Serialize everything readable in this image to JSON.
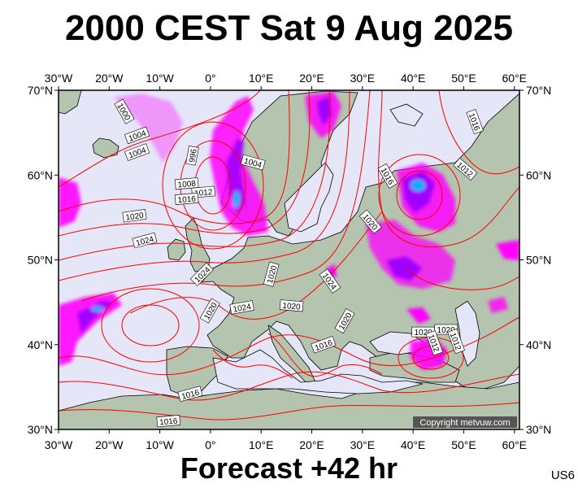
{
  "title": "2000 CEST Sat 9 Aug 2025",
  "footer": "Forecast +42 hr",
  "code": "US6",
  "copyright": "Copyright metvuw.com",
  "axes": {
    "top_lon": [
      "30°W",
      "20°W",
      "10°W",
      "0°",
      "10°E",
      "20°E",
      "30°E",
      "40°E",
      "50°E",
      "60°E"
    ],
    "bottom_lon": [
      "30°W",
      "20°W",
      "10°W",
      "0°",
      "10°E",
      "20°E",
      "30°E",
      "40°E",
      "50°E",
      "60°E"
    ],
    "left_lat": [
      "70°N",
      "60°N",
      "50°N",
      "40°N",
      "30°N"
    ],
    "right_lat": [
      "70°N",
      "60°N",
      "50°N",
      "40°N",
      "30°N"
    ]
  },
  "isobar_labels": [
    {
      "text": "1000",
      "lon": -17.0,
      "lat": 67.5,
      "rot": 60
    },
    {
      "text": "1004",
      "lon": -14.5,
      "lat": 64.7,
      "rot": -20
    },
    {
      "text": "1004",
      "lon": -14.5,
      "lat": 62.7,
      "rot": -20
    },
    {
      "text": "996",
      "lon": -3.6,
      "lat": 62.3,
      "rot": -80
    },
    {
      "text": "1004",
      "lon": 8.4,
      "lat": 61.5,
      "rot": 15
    },
    {
      "text": "1008",
      "lon": -4.7,
      "lat": 59.0,
      "rot": -5
    },
    {
      "text": "1012",
      "lon": -1.4,
      "lat": 58.0,
      "rot": -5
    },
    {
      "text": "1016",
      "lon": -4.7,
      "lat": 57.2,
      "rot": -5
    },
    {
      "text": "1020",
      "lon": -15.0,
      "lat": 55.2,
      "rot": -8
    },
    {
      "text": "1024",
      "lon": -13.0,
      "lat": 52.3,
      "rot": -15
    },
    {
      "text": "1024",
      "lon": -1.7,
      "lat": 48.3,
      "rot": -45
    },
    {
      "text": "1020",
      "lon": -0.1,
      "lat": 44.0,
      "rot": -60
    },
    {
      "text": "1024",
      "lon": 6.2,
      "lat": 44.4,
      "rot": -10
    },
    {
      "text": "1020",
      "lon": 12.0,
      "lat": 48.3,
      "rot": -75
    },
    {
      "text": "1020",
      "lon": 16.0,
      "lat": 44.6,
      "rot": 5
    },
    {
      "text": "1024",
      "lon": 23.6,
      "lat": 47.5,
      "rot": 55
    },
    {
      "text": "1020",
      "lon": 26.5,
      "lat": 42.8,
      "rot": -60
    },
    {
      "text": "1016",
      "lon": 22.3,
      "lat": 40.0,
      "rot": -20
    },
    {
      "text": "1016",
      "lon": 35.0,
      "lat": 59.9,
      "rot": 60
    },
    {
      "text": "1020",
      "lon": 31.6,
      "lat": 54.5,
      "rot": 50
    },
    {
      "text": "1016",
      "lon": 52.2,
      "lat": 66.3,
      "rot": 70
    },
    {
      "text": "1012",
      "lon": 50.3,
      "lat": 60.7,
      "rot": 40
    },
    {
      "text": "1020",
      "lon": 42.0,
      "lat": 41.5,
      "rot": 0
    },
    {
      "text": "1020",
      "lon": 46.5,
      "lat": 41.8,
      "rot": 0
    },
    {
      "text": "1012",
      "lon": 44.2,
      "lat": 40.2,
      "rot": 70
    },
    {
      "text": "1012",
      "lon": 48.5,
      "lat": 40.4,
      "rot": 70
    },
    {
      "text": "1016",
      "lon": -4.0,
      "lat": 34.2,
      "rot": -15
    },
    {
      "text": "1016",
      "lon": -8.3,
      "lat": 31.0,
      "rot": -5
    }
  ],
  "colors": {
    "ocean": "#e6e6f9",
    "land": "#b4c4ae",
    "isobar": "#ff0000",
    "precip_light": "#ff00ff",
    "precip_medium": "#a000ff",
    "precip_heavy": "#00b0ff",
    "coast": "#000000"
  }
}
